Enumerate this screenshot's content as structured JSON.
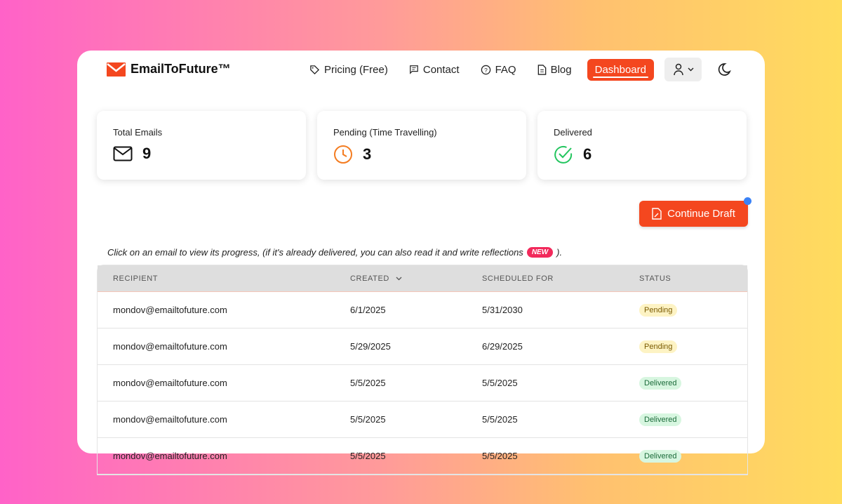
{
  "brand": {
    "name": "EmailToFuture™",
    "accent": "#f4471f"
  },
  "nav": {
    "pricing": "Pricing (Free)",
    "contact": "Contact",
    "faq": "FAQ",
    "blog": "Blog",
    "dashboard": "Dashboard"
  },
  "stats": [
    {
      "label": "Total Emails",
      "value": "9",
      "icon": "mail-icon"
    },
    {
      "label": "Pending (Time Travelling)",
      "value": "3",
      "icon": "clock-icon"
    },
    {
      "label": "Delivered",
      "value": "6",
      "icon": "check-circle-icon"
    }
  ],
  "continue_draft": "Continue Draft",
  "hint": {
    "text": "Click on an email to view its progress, (if it's already delivered, you can also read it and write reflections",
    "badge": "NEW",
    "end": ")."
  },
  "table": {
    "headers": [
      "RECIPIENT",
      "CREATED",
      "SCHEDULED FOR",
      "STATUS"
    ],
    "rows": [
      [
        "mondov@emailtofuture.com",
        "6/1/2025",
        "5/31/2030",
        "Pending"
      ],
      [
        "mondov@emailtofuture.com",
        "5/29/2025",
        "6/29/2025",
        "Pending"
      ],
      [
        "mondov@emailtofuture.com",
        "5/5/2025",
        "5/5/2025",
        "Delivered"
      ],
      [
        "mondov@emailtofuture.com",
        "5/5/2025",
        "5/5/2025",
        "Delivered"
      ],
      [
        "mondov@emailtofuture.com",
        "5/5/2025",
        "5/5/2025",
        "Delivered"
      ]
    ]
  }
}
